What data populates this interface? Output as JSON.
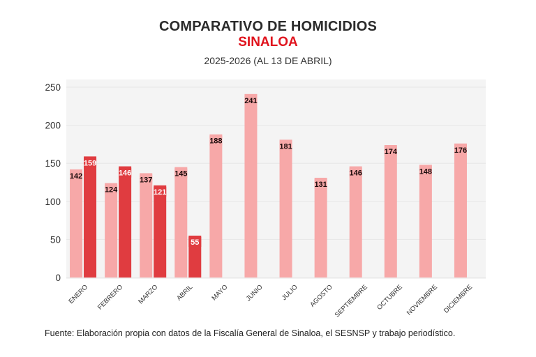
{
  "header": {
    "title": "COMPARATIVO DE HOMICIDIOS",
    "region": "SINALOA",
    "period": "2025-2026 (AL 13 DE ABRIL)"
  },
  "footer": {
    "source": "Fuente: Elaboración propia con datos de la Fiscalía General de Sinaloa, el SESNSP y trabajo periodístico."
  },
  "colors": {
    "series_2025": "#f7a8a8",
    "series_2026": "#e03c40",
    "plot_bg": "#f4f4f4",
    "title_red": "#e0141e"
  },
  "chart_data": {
    "type": "bar",
    "title": "COMPARATIVO DE HOMICIDIOS SINALOA",
    "subtitle": "2025-2026 (AL 13 DE ABRIL)",
    "xlabel": "",
    "ylabel": "",
    "ylim": [
      0,
      250
    ],
    "yticks": [
      0,
      50,
      100,
      150,
      200,
      250
    ],
    "grid": true,
    "legend": "none",
    "categories": [
      "ENERO",
      "FEBRERO",
      "MARZO",
      "ABRIL",
      "MAYO",
      "JUNIO",
      "JULIO",
      "AGOSTO",
      "SEPTIEMBRE",
      "OCTUBRE",
      "NOVIEMBRE",
      "DICIEMBRE"
    ],
    "series": [
      {
        "name": "2025",
        "values": [
          142,
          124,
          137,
          145,
          188,
          241,
          181,
          131,
          146,
          174,
          148,
          176
        ]
      },
      {
        "name": "2026",
        "values": [
          159,
          146,
          121,
          55,
          null,
          null,
          null,
          null,
          null,
          null,
          null,
          null
        ]
      }
    ]
  }
}
